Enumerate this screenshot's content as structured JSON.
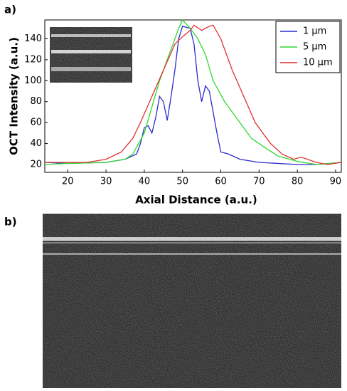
{
  "chart_data": {
    "type": "line",
    "panel_label": "a)",
    "xlabel": "Axial Distance (a.u.)",
    "ylabel": "OCT Intensity (a.u.)",
    "xlim": [
      14,
      91.5
    ],
    "ylim": [
      12.5,
      158
    ],
    "xticks": [
      20,
      30,
      40,
      50,
      60,
      70,
      80,
      90
    ],
    "yticks": [
      20,
      40,
      60,
      80,
      100,
      120,
      140
    ],
    "legend": "upper right",
    "series": [
      {
        "name": "1 μm",
        "color": "#2b2bd0",
        "x": [
          14,
          20,
          30,
          35,
          38,
          39,
          40,
          41,
          42,
          43,
          44,
          45,
          46,
          47,
          48,
          49,
          50,
          52,
          53,
          54,
          55,
          56,
          57,
          58,
          59,
          60,
          62,
          65,
          70,
          80,
          85,
          91.5
        ],
        "values": [
          22,
          21,
          22,
          25,
          30,
          40,
          55,
          57,
          50,
          65,
          85,
          80,
          62,
          85,
          110,
          140,
          152,
          150,
          135,
          100,
          80,
          95,
          90,
          70,
          50,
          32,
          30,
          25,
          22,
          20,
          20,
          22
        ]
      },
      {
        "name": "5 μm",
        "color": "#2fd82f",
        "x": [
          14,
          20,
          30,
          35,
          37,
          40,
          42,
          44,
          47,
          49,
          50,
          52,
          54,
          56,
          58,
          61,
          65,
          68,
          72,
          75,
          80,
          85,
          91.5
        ],
        "values": [
          20,
          21,
          22,
          25,
          30,
          50,
          75,
          100,
          130,
          150,
          158,
          150,
          140,
          125,
          100,
          80,
          60,
          45,
          35,
          28,
          23,
          20,
          22
        ]
      },
      {
        "name": "10 μm",
        "color": "#e03030",
        "x": [
          14,
          25,
          30,
          34,
          37,
          39,
          42,
          45,
          48,
          50,
          52,
          53,
          55,
          57,
          58,
          60,
          63,
          66,
          69,
          73,
          76,
          79,
          81,
          85,
          88,
          91.5
        ],
        "values": [
          22,
          22,
          25,
          32,
          45,
          60,
          85,
          110,
          135,
          142,
          148,
          153,
          148,
          152,
          153,
          140,
          110,
          85,
          60,
          40,
          30,
          25,
          27,
          22,
          20,
          22
        ]
      }
    ]
  },
  "image_panel": {
    "label": "b)"
  }
}
